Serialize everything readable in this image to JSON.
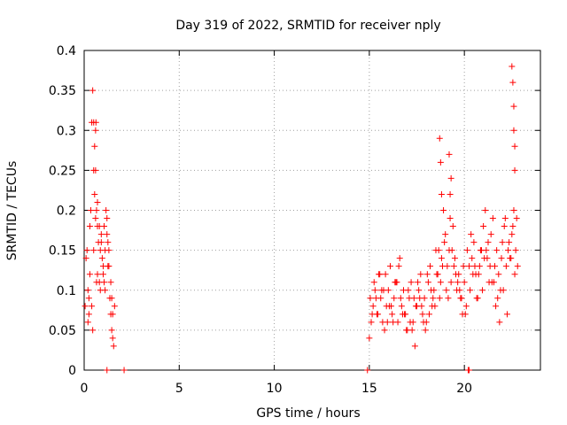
{
  "chart_data": {
    "type": "scatter",
    "title": "Day 319 of 2022, SRMTID for receiver nply",
    "xlabel": "GPS time / hours",
    "ylabel": "SRMTID / TECUs",
    "xlim": [
      0,
      24
    ],
    "ylim": [
      0,
      0.4
    ],
    "x_ticks": [
      0,
      5,
      10,
      15,
      20
    ],
    "x_tick_labels": [
      "0",
      "5",
      "10",
      "15",
      "20"
    ],
    "y_ticks": [
      0,
      0.05,
      0.1,
      0.15,
      0.2,
      0.25,
      0.3,
      0.35,
      0.4
    ],
    "y_tick_labels": [
      "0",
      "0.05",
      "0.1",
      "0.15",
      "0.2",
      "0.25",
      "0.3",
      "0.35",
      "0.4"
    ],
    "grid": true,
    "marker": "plus",
    "color": "#ff0000",
    "series": [
      {
        "x": [
          0.05,
          0.1,
          0.15,
          0.2,
          0.25,
          0.3,
          0.35,
          0.4,
          0.45,
          0.5,
          0.5,
          0.55,
          0.55,
          0.6,
          0.6,
          0.62,
          0.65,
          0.7,
          0.7,
          0.75,
          0.8,
          0.85,
          0.9,
          0.95,
          1.0,
          1.05,
          1.1,
          1.15,
          1.2,
          1.25,
          1.3,
          1.35,
          1.4,
          1.45,
          1.5,
          1.55,
          1.6,
          0.2,
          0.3,
          0.4,
          0.5,
          0.6,
          0.7,
          0.8,
          0.9,
          1.0,
          1.1,
          1.2,
          1.3,
          1.4,
          1.5,
          0.25,
          0.45,
          0.65,
          0.85,
          1.05,
          1.25,
          1.45,
          1.2,
          2.1,
          14.9,
          15.0,
          15.1,
          15.2,
          15.3,
          15.4,
          15.5,
          15.6,
          15.7,
          15.8,
          15.9,
          16.0,
          16.1,
          16.2,
          16.3,
          16.4,
          16.5,
          16.6,
          16.7,
          16.8,
          16.9,
          17.0,
          17.1,
          17.2,
          17.3,
          17.4,
          17.5,
          17.6,
          17.7,
          17.8,
          17.9,
          18.0,
          18.1,
          18.2,
          18.3,
          18.4,
          18.5,
          18.6,
          18.7,
          18.8,
          18.9,
          19.0,
          19.1,
          19.2,
          19.3,
          19.4,
          19.5,
          19.6,
          19.7,
          19.8,
          19.9,
          20.0,
          20.1,
          20.2,
          20.3,
          20.4,
          20.5,
          20.6,
          20.7,
          20.8,
          20.9,
          21.0,
          21.1,
          21.2,
          21.3,
          21.4,
          21.5,
          21.6,
          21.7,
          21.8,
          21.9,
          22.0,
          22.1,
          22.2,
          22.3,
          22.4,
          22.5,
          22.6,
          22.7,
          22.8,
          15.05,
          15.25,
          15.45,
          15.65,
          15.85,
          16.05,
          16.25,
          16.45,
          16.65,
          16.85,
          17.05,
          17.25,
          17.45,
          17.65,
          17.85,
          18.05,
          18.25,
          18.45,
          18.65,
          18.85,
          19.05,
          19.25,
          19.45,
          19.65,
          19.85,
          20.05,
          20.25,
          20.45,
          20.65,
          20.85,
          21.05,
          21.25,
          21.45,
          21.65,
          21.85,
          22.05,
          22.25,
          22.45,
          22.65,
          15.15,
          15.35,
          15.55,
          15.75,
          15.95,
          16.15,
          16.35,
          16.55,
          16.75,
          16.95,
          17.15,
          17.35,
          17.55,
          17.75,
          17.95,
          18.15,
          18.35,
          18.55,
          18.75,
          18.95,
          19.15,
          19.35,
          19.55,
          19.75,
          19.95,
          20.15,
          20.35,
          20.55,
          20.75,
          20.95,
          21.15,
          21.35,
          21.55,
          21.75,
          21.95,
          22.15,
          22.35,
          22.55,
          22.75,
          18.7,
          18.75,
          18.8,
          19.2,
          19.25,
          19.3,
          22.5,
          22.55,
          22.6,
          22.6,
          22.65,
          22.65,
          20.25
        ],
        "y": [
          0.08,
          0.14,
          0.15,
          0.1,
          0.09,
          0.18,
          0.2,
          0.31,
          0.35,
          0.25,
          0.31,
          0.22,
          0.28,
          0.3,
          0.25,
          0.31,
          0.2,
          0.18,
          0.12,
          0.16,
          0.11,
          0.1,
          0.17,
          0.14,
          0.12,
          0.11,
          0.15,
          0.2,
          0.17,
          0.16,
          0.13,
          0.09,
          0.07,
          0.05,
          0.04,
          0.03,
          0.08,
          0.06,
          0.12,
          0.08,
          0.15,
          0.19,
          0.21,
          0.18,
          0.16,
          0.13,
          0.1,
          0.19,
          0.15,
          0.11,
          0.07,
          0.07,
          0.05,
          0.11,
          0.15,
          0.18,
          0.13,
          0.09,
          0.0,
          0.0,
          0.0,
          0.04,
          0.06,
          0.08,
          0.1,
          0.07,
          0.12,
          0.09,
          0.06,
          0.05,
          0.08,
          0.1,
          0.13,
          0.07,
          0.09,
          0.11,
          0.06,
          0.14,
          0.08,
          0.1,
          0.07,
          0.05,
          0.09,
          0.11,
          0.06,
          0.03,
          0.08,
          0.1,
          0.12,
          0.07,
          0.09,
          0.06,
          0.11,
          0.13,
          0.08,
          0.1,
          0.15,
          0.12,
          0.09,
          0.14,
          0.2,
          0.17,
          0.13,
          0.15,
          0.11,
          0.18,
          0.14,
          0.1,
          0.12,
          0.09,
          0.07,
          0.11,
          0.08,
          0.0,
          0.1,
          0.14,
          0.16,
          0.12,
          0.09,
          0.13,
          0.15,
          0.18,
          0.2,
          0.14,
          0.11,
          0.17,
          0.19,
          0.13,
          0.15,
          0.12,
          0.1,
          0.16,
          0.18,
          0.13,
          0.15,
          0.14,
          0.17,
          0.2,
          0.15,
          0.13,
          0.09,
          0.11,
          0.07,
          0.1,
          0.12,
          0.08,
          0.06,
          0.11,
          0.09,
          0.07,
          0.1,
          0.05,
          0.08,
          0.09,
          0.06,
          0.12,
          0.1,
          0.08,
          0.15,
          0.13,
          0.1,
          0.19,
          0.13,
          0.11,
          0.09,
          0.07,
          0.13,
          0.12,
          0.09,
          0.15,
          0.14,
          0.16,
          0.11,
          0.08,
          0.06,
          0.1,
          0.07,
          0.14,
          0.12,
          0.07,
          0.09,
          0.12,
          0.1,
          0.06,
          0.08,
          0.11,
          0.13,
          0.07,
          0.05,
          0.06,
          0.09,
          0.11,
          0.08,
          0.05,
          0.07,
          0.09,
          0.12,
          0.11,
          0.16,
          0.09,
          0.15,
          0.12,
          0.1,
          0.13,
          0.15,
          0.17,
          0.13,
          0.12,
          0.1,
          0.15,
          0.13,
          0.11,
          0.09,
          0.14,
          0.19,
          0.16,
          0.18,
          0.19,
          0.29,
          0.26,
          0.22,
          0.27,
          0.22,
          0.24,
          0.38,
          0.36,
          0.33,
          0.3,
          0.28,
          0.25,
          0.0
        ]
      }
    ]
  }
}
